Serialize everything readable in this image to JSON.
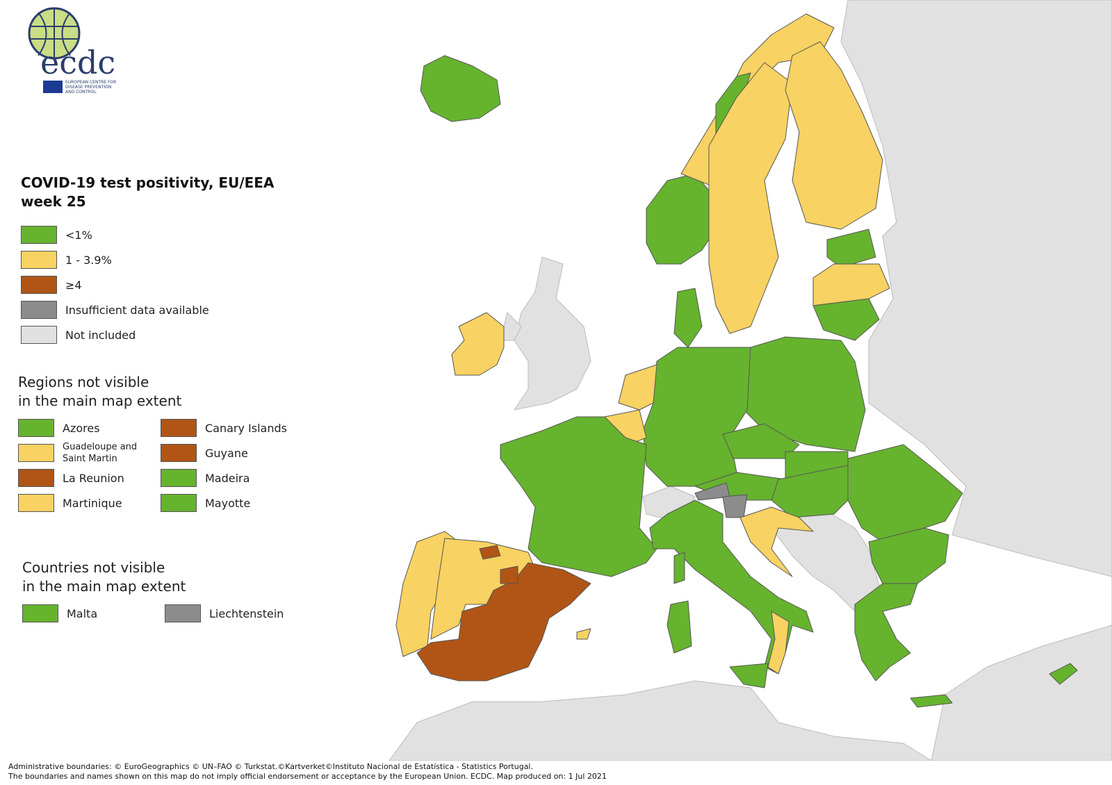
{
  "logo": {
    "wordmark": "ecdc",
    "agency": [
      "EUROPEAN CENTRE FOR",
      "DISEASE PREVENTION",
      "AND CONTROL"
    ]
  },
  "title": [
    "COVID-19 test positivity, EU/EEA",
    "week 25"
  ],
  "legend": [
    {
      "label": "<1%",
      "color": "#66b32e"
    },
    {
      "label": "1 - 3.9%",
      "color": "#f8d262"
    },
    {
      "label": "≥4",
      "color": "#b05516"
    },
    {
      "label": "Insufficient data available",
      "color": "#8c8c8c"
    },
    {
      "label": "Not included",
      "color": "#e1e1e1"
    }
  ],
  "regions": {
    "title": [
      "Regions not visible",
      "in the main map extent"
    ],
    "items": [
      {
        "label": "Azores",
        "color": "#66b32e"
      },
      {
        "label": "Canary Islands",
        "color": "#b05516"
      },
      {
        "label": "Guadeloupe and Saint Martin",
        "color": "#f8d262"
      },
      {
        "label": "Guyane",
        "color": "#b05516"
      },
      {
        "label": "La Reunion",
        "color": "#b05516"
      },
      {
        "label": "Madeira",
        "color": "#66b32e"
      },
      {
        "label": "Martinique",
        "color": "#f8d262"
      },
      {
        "label": "Mayotte",
        "color": "#66b32e"
      }
    ]
  },
  "countries": {
    "title": [
      "Countries not visible",
      "in the main map extent"
    ],
    "items": [
      {
        "label": "Malta",
        "color": "#66b32e"
      },
      {
        "label": "Liechtenstein",
        "color": "#8c8c8c"
      }
    ]
  },
  "footer": [
    "Administrative boundaries: © EuroGeographics © UN–FAO © Turkstat.©Kartverket©Instituto Nacional de Estatística - Statistics Portugal.",
    "The boundaries and names shown on this map do not imply official endorsement or acceptance by the European Union. ECDC. Map produced on: 1 Jul 2021"
  ]
}
